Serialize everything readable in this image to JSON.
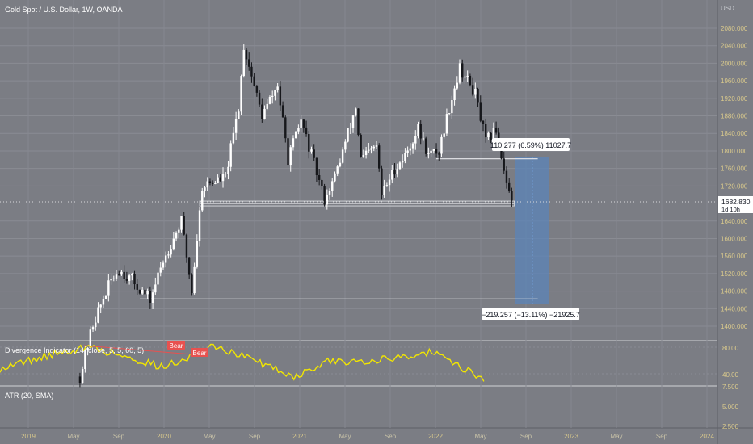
{
  "header": {
    "symbol_title": "Gold Spot / U.S. Dollar, 1W, OANDA"
  },
  "price_axis": {
    "currency": "USD",
    "ticks": [
      "2080.000",
      "2040.000",
      "2000.000",
      "1960.000",
      "1920.000",
      "1880.000",
      "1840.000",
      "1800.000",
      "1760.000",
      "1720.000",
      "1640.000",
      "1600.000",
      "1560.000",
      "1520.000",
      "1480.000",
      "1440.000",
      "1400.000"
    ],
    "last_price": "1682.830",
    "countdown": "1d 10h"
  },
  "time_axis": {
    "labels": [
      "2019",
      "May",
      "Sep",
      "2020",
      "May",
      "Sep",
      "2021",
      "May",
      "Sep",
      "2022",
      "May",
      "Sep",
      "2023",
      "May",
      "Sep",
      "2024"
    ]
  },
  "measurements": {
    "upper": "110.277 (6.59%) 11027.7",
    "lower": "−219.257 (−13.11%) −21925.7"
  },
  "divergence_panel": {
    "title": "Divergence Indicator (14, close, 5, 5, 60, 5)",
    "ticks": [
      "80.00",
      "40.00"
    ],
    "bear_label_1": "Bear",
    "bear_label_2": "Bear"
  },
  "atr_panel": {
    "title": "ATR (20, SMA)",
    "ticks": [
      "7.500",
      "5.000",
      "2.500"
    ]
  },
  "colors": {
    "background": "#7b7d84",
    "bull": "#ffffff",
    "bear": "#16171b",
    "rsi_line": "#f2e600",
    "bear_label": "#e8514f",
    "measure_fill": "#5b84b8",
    "axis_text_gold": "#d9c98c"
  },
  "chart_data": {
    "type": "candlestick",
    "title": "Gold Spot / U.S. Dollar, 1W, OANDA",
    "x_range": [
      "2019-01",
      "2024-01"
    ],
    "y_range": [
      1370,
      2110
    ],
    "y_ticks": [
      1400,
      1440,
      1480,
      1520,
      1560,
      1600,
      1640,
      1720,
      1760,
      1800,
      1840,
      1880,
      1920,
      1960,
      2000,
      2040,
      2080
    ],
    "last_close": 1682.83,
    "close_path": [
      {
        "date": "2019-05-20",
        "close": 1285
      },
      {
        "date": "2019-06-24",
        "close": 1405
      },
      {
        "date": "2019-08-12",
        "close": 1505
      },
      {
        "date": "2019-09-02",
        "close": 1530
      },
      {
        "date": "2019-10-07",
        "close": 1505
      },
      {
        "date": "2019-11-25",
        "close": 1460
      },
      {
        "date": "2019-12-30",
        "close": 1550
      },
      {
        "date": "2020-02-17",
        "close": 1640
      },
      {
        "date": "2020-03-16",
        "close": 1480
      },
      {
        "date": "2020-04-13",
        "close": 1720
      },
      {
        "date": "2020-06-15",
        "close": 1740
      },
      {
        "date": "2020-07-20",
        "close": 1900
      },
      {
        "date": "2020-08-03",
        "close": 2040
      },
      {
        "date": "2020-09-21",
        "close": 1880
      },
      {
        "date": "2020-11-02",
        "close": 1950
      },
      {
        "date": "2020-11-30",
        "close": 1780
      },
      {
        "date": "2021-01-04",
        "close": 1870
      },
      {
        "date": "2021-03-08",
        "close": 1690
      },
      {
        "date": "2021-04-05",
        "close": 1740
      },
      {
        "date": "2021-05-31",
        "close": 1900
      },
      {
        "date": "2021-06-14",
        "close": 1780
      },
      {
        "date": "2021-07-26",
        "close": 1810
      },
      {
        "date": "2021-08-09",
        "close": 1700
      },
      {
        "date": "2021-09-13",
        "close": 1760
      },
      {
        "date": "2021-10-11",
        "close": 1790
      },
      {
        "date": "2021-11-15",
        "close": 1850
      },
      {
        "date": "2021-12-13",
        "close": 1790
      },
      {
        "date": "2022-01-10",
        "close": 1800
      },
      {
        "date": "2022-02-07",
        "close": 1900
      },
      {
        "date": "2022-03-07",
        "close": 1990
      },
      {
        "date": "2022-04-18",
        "close": 1930
      },
      {
        "date": "2022-05-16",
        "close": 1820
      },
      {
        "date": "2022-06-13",
        "close": 1850
      },
      {
        "date": "2022-07-04",
        "close": 1760
      },
      {
        "date": "2022-07-25",
        "close": 1682.83
      }
    ],
    "levels": [
      {
        "price": 1680,
        "from": "2020-04-06",
        "to": "2022-08-01"
      },
      {
        "price": 1782,
        "from": "2022-01-03",
        "to": "2022-10-03"
      },
      {
        "price": 1462,
        "from": "2019-10-28",
        "to": "2022-10-03"
      }
    ],
    "indicators": [
      {
        "name": "Divergence Indicator (14, close, 5, 5, 60, 5)",
        "type": "line",
        "ticks": [
          40,
          80
        ],
        "values_approx": [
          {
            "date": "2019-01-01",
            "v": 48
          },
          {
            "date": "2019-07-01",
            "v": 75
          },
          {
            "date": "2019-09-01",
            "v": 80
          },
          {
            "date": "2020-01-01",
            "v": 62
          },
          {
            "date": "2020-03-15",
            "v": 50
          },
          {
            "date": "2020-08-03",
            "v": 82
          },
          {
            "date": "2021-03-08",
            "v": 36
          },
          {
            "date": "2021-06-01",
            "v": 58
          },
          {
            "date": "2021-11-15",
            "v": 62
          },
          {
            "date": "2022-03-07",
            "v": 73
          },
          {
            "date": "2022-08-01",
            "v": 30
          }
        ]
      },
      {
        "name": "ATR (20, SMA)",
        "type": "line",
        "ticks": [
          2.5,
          5,
          7.5
        ]
      }
    ]
  }
}
